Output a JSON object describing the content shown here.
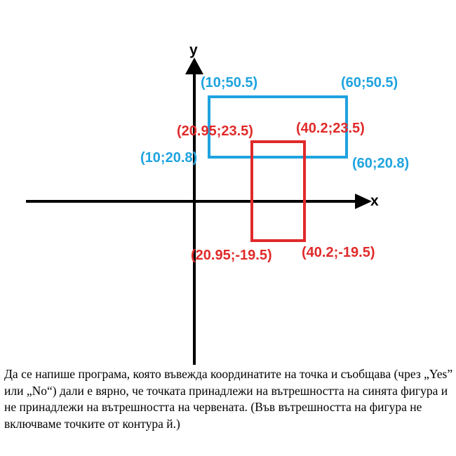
{
  "axes": {
    "x_label": "x",
    "y_label": "y",
    "color": "#000000"
  },
  "blue_rectangle": {
    "color": "#1ea3e0",
    "corners": {
      "top_left": "(10;50.5)",
      "top_right": "(60;50.5)",
      "bottom_left": "(10;20.8)",
      "bottom_right": "(60;20.8)"
    }
  },
  "red_rectangle": {
    "color": "#e02a2a",
    "corners": {
      "top_left": "(20.95;23.5)",
      "top_right": "(40.2;23.5)",
      "bottom_left": "(20.95;-19.5)",
      "bottom_right": "(40.2;-19.5)"
    }
  },
  "task": {
    "text": "Да се напише програма, която въвежда координатите на точка и съобщава (чрез „Yes” или „No“) дали е вярно, че точката принадлежи на вътрешността на синята фигура и не принадлежи на вътрешността на червената. (Във вътрешността на фигура не включваме точките от контура й.)"
  }
}
